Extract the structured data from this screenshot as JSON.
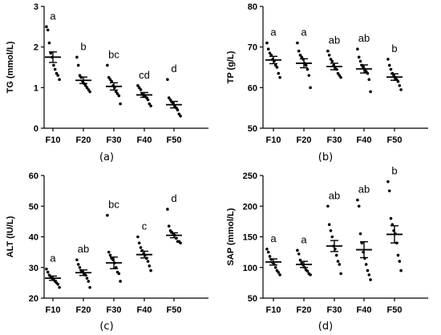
{
  "chart_data": [
    {
      "type": "scatter",
      "panel_label": "(a)",
      "ylabel": "TG (mmol/L)",
      "ylim": [
        0,
        3
      ],
      "yticks": [
        "0",
        "1",
        "2",
        "3"
      ],
      "categories": [
        "F10",
        "F20",
        "F30",
        "F40",
        "F50"
      ],
      "means": [
        1.75,
        1.18,
        1.03,
        0.82,
        0.58
      ],
      "sem": [
        0.13,
        0.08,
        0.09,
        0.06,
        0.08
      ],
      "letters": [
        "a",
        "b",
        "bc",
        "cd",
        "d"
      ],
      "points": [
        [
          2.5,
          2.42,
          2.1,
          1.85,
          1.75,
          1.55,
          1.45,
          1.35,
          1.3,
          1.2
        ],
        [
          1.75,
          1.55,
          1.3,
          1.25,
          1.15,
          1.1,
          1.05,
          1.0,
          0.95,
          0.9
        ],
        [
          1.55,
          1.25,
          1.2,
          1.15,
          1.05,
          1.0,
          0.9,
          0.85,
          0.8,
          0.6
        ],
        [
          1.05,
          1.0,
          0.95,
          0.85,
          0.8,
          0.8,
          0.75,
          0.7,
          0.6,
          0.55
        ],
        [
          1.2,
          0.75,
          0.7,
          0.65,
          0.6,
          0.55,
          0.5,
          0.45,
          0.35,
          0.3
        ]
      ]
    },
    {
      "type": "scatter",
      "panel_label": "(b)",
      "ylabel": "TP (g/L)",
      "ylim": [
        50,
        80
      ],
      "yticks": [
        "50",
        "60",
        "70",
        "80"
      ],
      "categories": [
        "F10",
        "F20",
        "F30",
        "F40",
        "F50"
      ],
      "means": [
        66.8,
        66.0,
        65.2,
        64.6,
        62.6
      ],
      "sem": [
        0.9,
        1.1,
        0.8,
        1.0,
        0.8
      ],
      "letters": [
        "a",
        "a",
        "ab",
        "ab",
        "b"
      ],
      "points": [
        [
          71,
          69.5,
          68.5,
          68,
          67,
          66.5,
          65.5,
          65,
          63.5,
          62.5
        ],
        [
          71,
          69,
          68,
          67.5,
          67,
          66,
          65.5,
          64.5,
          63,
          60
        ],
        [
          69,
          68,
          67,
          66.5,
          65.5,
          65,
          64.5,
          63.5,
          63,
          62.5
        ],
        [
          69.5,
          67.5,
          66.5,
          65.5,
          65,
          64.5,
          64,
          63.5,
          62,
          59
        ],
        [
          67,
          65.5,
          64.5,
          63.5,
          63,
          62.5,
          62,
          61.5,
          60.5,
          59.5
        ]
      ]
    },
    {
      "type": "scatter",
      "panel_label": "(c)",
      "ylabel": "ALT (IU/L)",
      "ylim": [
        20,
        60
      ],
      "yticks": [
        "20",
        "30",
        "40",
        "50",
        "60"
      ],
      "categories": [
        "F10",
        "F20",
        "F30",
        "F40",
        "F50"
      ],
      "means": [
        26.5,
        28.3,
        31.5,
        34.2,
        40.5
      ],
      "sem": [
        0.7,
        0.9,
        1.9,
        1.1,
        0.8
      ],
      "letters": [
        "a",
        "ab",
        "bc",
        "c",
        "d"
      ],
      "points": [
        [
          29.5,
          28.5,
          27.5,
          27,
          26.5,
          26,
          25.5,
          25,
          24.5,
          23.5
        ],
        [
          32.5,
          31,
          30,
          29,
          28.5,
          28,
          27.5,
          26.5,
          25.5,
          23.5
        ],
        [
          47,
          35,
          34,
          33,
          32.5,
          31.5,
          30,
          28.5,
          28,
          25.5
        ],
        [
          40,
          38,
          36.5,
          35.5,
          34.5,
          34,
          33,
          32,
          30.5,
          29
        ],
        [
          49,
          43.5,
          42,
          41.5,
          41,
          40.5,
          39.5,
          38.5,
          38.5,
          38
        ]
      ]
    },
    {
      "type": "scatter",
      "panel_label": "(d)",
      "ylabel": "SAP (mmol/L)",
      "ylim": [
        50,
        250
      ],
      "yticks": [
        "50",
        "100",
        "150",
        "200",
        "250"
      ],
      "categories": [
        "F10",
        "F20",
        "F30",
        "F40",
        "F50"
      ],
      "means": [
        109,
        105,
        135,
        129,
        154
      ],
      "sem": [
        5,
        5,
        9,
        13,
        14
      ],
      "letters": [
        "a",
        "a",
        "ab",
        "ab",
        "b"
      ],
      "points": [
        [
          130,
          125,
          118,
          113,
          108,
          105,
          100,
          95,
          92,
          88
        ],
        [
          128,
          122,
          112,
          107,
          104,
          100,
          96,
          94,
          90,
          88
        ],
        [
          200,
          170,
          160,
          150,
          135,
          130,
          120,
          110,
          105,
          90
        ],
        [
          210,
          200,
          155,
          140,
          125,
          115,
          105,
          95,
          88,
          80
        ],
        [
          240,
          225,
          180,
          170,
          160,
          155,
          140,
          120,
          110,
          95
        ]
      ]
    }
  ]
}
